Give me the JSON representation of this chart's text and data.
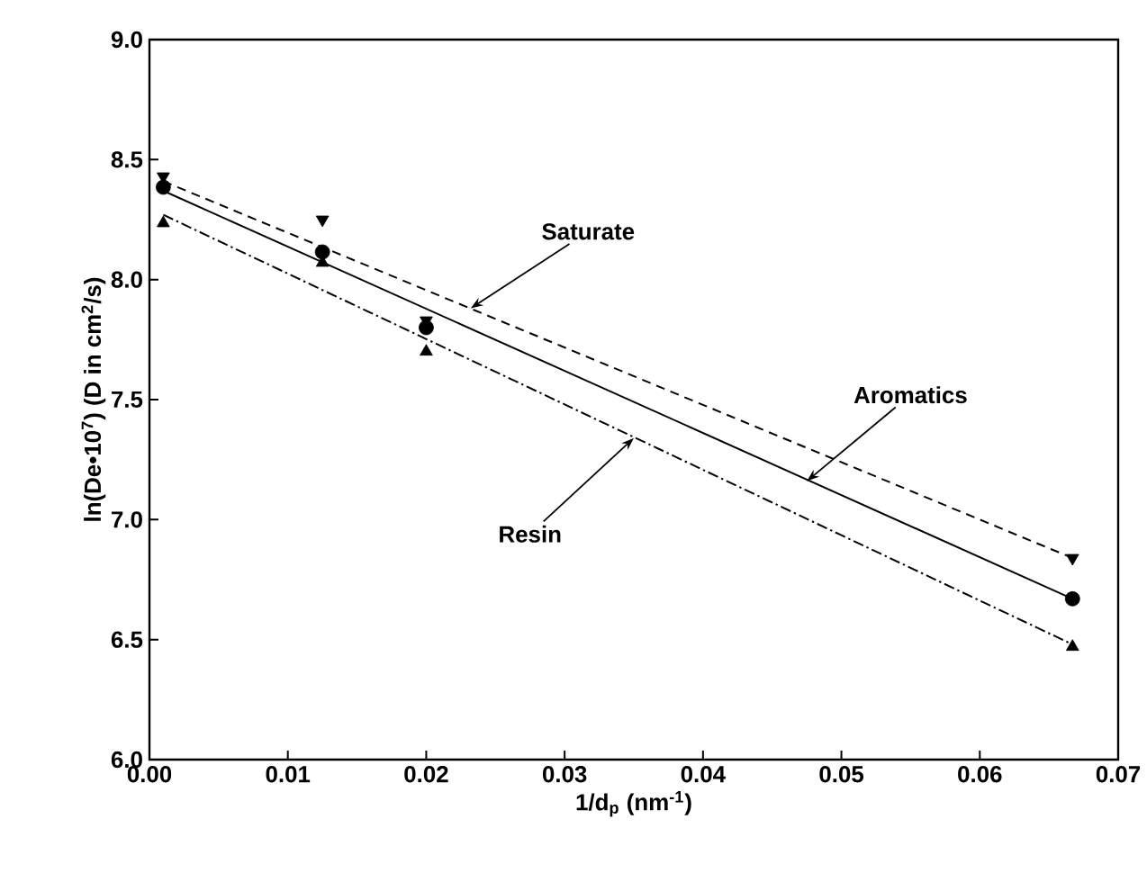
{
  "chart_data": {
    "type": "scatter",
    "xlabel": "1/d$_{p}$ (nm$^{-1}$)",
    "ylabel": "ln(De•10$^{7}$) (D in cm$^{2}$/s)",
    "x": [
      0.001,
      0.0125,
      0.02,
      0.0667
    ],
    "series": [
      {
        "marker": "triangle-down",
        "color": "#000000",
        "values": [
          8.43,
          8.25,
          7.83,
          6.84
        ]
      },
      {
        "marker": "circle",
        "color": "#000000",
        "values": [
          8.385,
          8.115,
          7.8,
          6.67
        ]
      },
      {
        "marker": "triangle",
        "color": "#000000",
        "values": [
          8.235,
          8.07,
          7.7,
          6.47
        ]
      },
      {
        "type": "line",
        "marker": "none",
        "line_style": "dashed",
        "color": "#000000",
        "values": [
          8.41,
          null,
          null,
          6.84
        ]
      },
      {
        "type": "line",
        "marker": "none",
        "line_style": "solid",
        "color": "#000000",
        "values": [
          8.37,
          null,
          null,
          6.67
        ]
      },
      {
        "type": "line",
        "marker": "none",
        "line_style": "dashdot",
        "color": "#000000",
        "values": [
          8.27,
          null,
          null,
          6.48
        ]
      }
    ],
    "xlim": [
      0,
      0.07
    ],
    "ylim": [
      6.0,
      9.0
    ],
    "xticks": [
      {
        "value": 0,
        "label": "0.00"
      },
      {
        "value": 0.01,
        "label": "0.01"
      },
      {
        "value": 0.02,
        "label": "0.02"
      },
      {
        "value": 0.03,
        "label": "0.03"
      },
      {
        "value": 0.04,
        "label": "0.04"
      },
      {
        "value": 0.05,
        "label": "0.05"
      },
      {
        "value": 0.06,
        "label": "0.06"
      },
      {
        "value": 0.07,
        "label": "0.07"
      }
    ],
    "yticks": [
      {
        "value": 6,
        "label": "6.0"
      },
      {
        "value": 6.5,
        "label": "6.5"
      },
      {
        "value": 7,
        "label": "7.0"
      },
      {
        "value": 7.5,
        "label": "7.5"
      },
      {
        "value": 8,
        "label": "8.0"
      },
      {
        "value": 8.5,
        "label": "8.5"
      },
      {
        "value": 9,
        "label": "9.0"
      }
    ],
    "annotations": [
      {
        "text": "Saturate",
        "x": 0.0232,
        "y": 7.88
      },
      {
        "text": "Aromatics",
        "x": 0.0475,
        "y": 7.16
      },
      {
        "text": "Resin",
        "x": 0.035,
        "y": 7.34
      }
    ],
    "grid": false
  }
}
